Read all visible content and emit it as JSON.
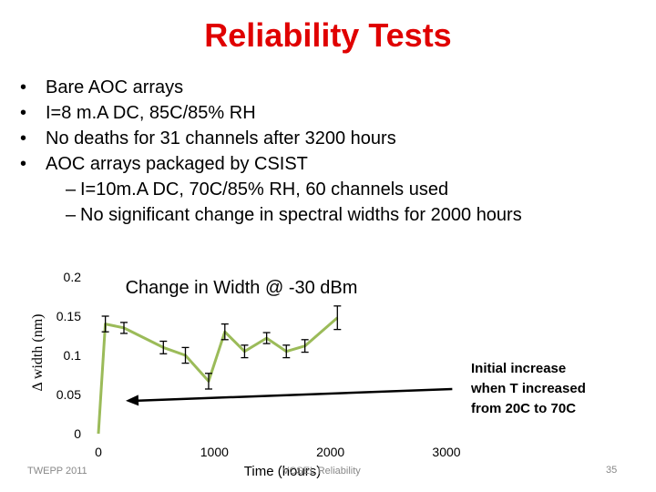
{
  "slide": {
    "title": "Reliability Tests",
    "bullets": [
      "Bare AOC arrays",
      "I=8 m.A DC, 85C/85% RH",
      "No deaths for 31 channels after 3200 hours",
      "AOC arrays packaged by CSIST"
    ],
    "sub_bullets": [
      "I=10m.A DC, 70C/85% RH, 60 channels used",
      "No significant change in spectral widths for 2000 hours"
    ],
    "footer_left": "TWEPP 2011",
    "footer_center": "VCSEL Reliability",
    "page_number": "35"
  },
  "chart_data": {
    "type": "line",
    "title": "Change in Width @ -30 dBm",
    "xlabel": "Time (hours)",
    "ylabel": "Δ width (nm)",
    "xlim": [
      0,
      3000
    ],
    "ylim": [
      0,
      0.2
    ],
    "x_ticks": [
      "0",
      "1000",
      "2000",
      "3000"
    ],
    "y_ticks": [
      "0",
      "0.05",
      "0.1",
      "0.15",
      "0.2"
    ],
    "grid": false,
    "legend": "none",
    "series": [
      {
        "color": "#9bbb59",
        "x": [
          0,
          60,
          220,
          560,
          750,
          950,
          1090,
          1260,
          1450,
          1620,
          1780,
          2060
        ],
        "y": [
          0.0,
          0.14,
          0.135,
          0.11,
          0.1,
          0.067,
          0.13,
          0.105,
          0.122,
          0.105,
          0.112,
          0.148
        ],
        "error": [
          0.0,
          0.01,
          0.007,
          0.008,
          0.01,
          0.01,
          0.01,
          0.008,
          0.007,
          0.008,
          0.008,
          0.015
        ]
      }
    ],
    "annotation": {
      "lines": [
        "Initial increase",
        "when T increased",
        "from 20C to 70C"
      ],
      "arrow_from": [
        3050,
        0.057
      ],
      "arrow_to": [
        0,
        0.042
      ]
    }
  }
}
